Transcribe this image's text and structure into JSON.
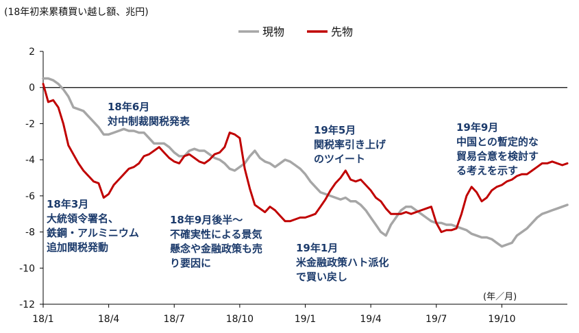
{
  "chart_data": {
    "type": "line",
    "subtitle": "(18年初来累積買い越し額、兆円)",
    "x_unit_label": "(年／月)",
    "ylim": [
      -12,
      2
    ],
    "yticks": [
      "2",
      "0",
      "-2",
      "-4",
      "-6",
      "-8",
      "-10",
      "-12"
    ],
    "ytick_values": [
      2,
      0,
      -2,
      -4,
      -6,
      -8,
      -10,
      -12
    ],
    "xticks": [
      "18/1",
      "18/4",
      "18/7",
      "18/10",
      "19/1",
      "19/4",
      "19/7",
      "19/10"
    ],
    "x_week_range": [
      0,
      104
    ],
    "grid": false,
    "legend_position": "top-center",
    "series": [
      {
        "name": "現物",
        "color": "#a6a6a6",
        "values": [
          0.5,
          0.5,
          0.4,
          0.2,
          -0.1,
          -0.5,
          -1.1,
          -1.2,
          -1.3,
          -1.6,
          -1.9,
          -2.2,
          -2.6,
          -2.6,
          -2.5,
          -2.4,
          -2.3,
          -2.4,
          -2.4,
          -2.5,
          -2.5,
          -2.8,
          -3.1,
          -3.1,
          -3.1,
          -3.3,
          -3.6,
          -3.8,
          -3.8,
          -3.5,
          -3.4,
          -3.5,
          -3.5,
          -3.7,
          -3.9,
          -4.0,
          -4.2,
          -4.5,
          -4.6,
          -4.4,
          -4.2,
          -3.8,
          -3.5,
          -3.9,
          -4.1,
          -4.2,
          -4.4,
          -4.2,
          -4.0,
          -4.1,
          -4.3,
          -4.5,
          -4.8,
          -5.2,
          -5.5,
          -5.8,
          -5.9,
          -6.0,
          -6.1,
          -6.2,
          -6.1,
          -6.3,
          -6.3,
          -6.5,
          -6.8,
          -7.2,
          -7.6,
          -8.0,
          -8.2,
          -7.6,
          -7.2,
          -6.8,
          -6.6,
          -6.6,
          -6.8,
          -7.0,
          -7.2,
          -7.4,
          -7.5,
          -7.5,
          -7.6,
          -7.6,
          -7.7,
          -7.8,
          -7.9,
          -8.1,
          -8.2,
          -8.3,
          -8.3,
          -8.4,
          -8.6,
          -8.8,
          -8.7,
          -8.6,
          -8.2,
          -8.0,
          -7.8,
          -7.5,
          -7.2,
          -7.0,
          -6.9,
          -6.8,
          -6.7,
          -6.6,
          -6.5
        ]
      },
      {
        "name": "先物",
        "color": "#c00000",
        "values": [
          0.2,
          -0.8,
          -0.7,
          -1.1,
          -2.0,
          -3.2,
          -3.7,
          -4.2,
          -4.6,
          -4.9,
          -5.2,
          -5.3,
          -6.1,
          -5.9,
          -5.4,
          -5.1,
          -4.8,
          -4.5,
          -4.4,
          -4.2,
          -3.8,
          -3.7,
          -3.5,
          -3.3,
          -3.6,
          -3.9,
          -4.1,
          -4.2,
          -3.8,
          -3.7,
          -3.9,
          -4.1,
          -4.2,
          -4.0,
          -3.7,
          -3.6,
          -3.3,
          -2.5,
          -2.6,
          -2.8,
          -4.5,
          -5.6,
          -6.5,
          -6.7,
          -6.9,
          -6.6,
          -6.8,
          -7.1,
          -7.4,
          -7.4,
          -7.3,
          -7.2,
          -7.2,
          -7.1,
          -7.0,
          -6.6,
          -6.2,
          -5.7,
          -5.3,
          -5.0,
          -4.6,
          -5.1,
          -5.2,
          -5.1,
          -5.4,
          -5.7,
          -6.1,
          -6.3,
          -6.7,
          -7.0,
          -7.0,
          -7.0,
          -6.9,
          -7.0,
          -6.9,
          -6.8,
          -6.7,
          -6.6,
          -7.5,
          -8.0,
          -7.9,
          -7.9,
          -7.8,
          -7.0,
          -6.0,
          -5.5,
          -5.8,
          -6.3,
          -6.1,
          -5.7,
          -5.5,
          -5.4,
          -5.2,
          -5.1,
          -4.9,
          -4.8,
          -4.8,
          -4.6,
          -4.4,
          -4.2,
          -4.2,
          -4.1,
          -4.2,
          -4.3,
          -4.2
        ]
      }
    ],
    "annotations": [
      {
        "lines": [
          "18年3月",
          "大統領令署名、",
          "鉄鋼・アルミニウム",
          "追加関税発動"
        ]
      },
      {
        "lines": [
          "18年6月",
          "対中制裁関税発表"
        ]
      },
      {
        "lines": [
          "18年9月後半～",
          "不確実性による景気",
          "懸念や金融政策も売",
          "り要因に"
        ]
      },
      {
        "lines": [
          "19年1月",
          "米金融政策ハト派化",
          "で買い戻し"
        ]
      },
      {
        "lines": [
          "19年5月",
          "関税率引き上げ",
          "のツイート"
        ]
      },
      {
        "lines": [
          "19年9月",
          "中国との暫定的な",
          "貿易合意を検討す",
          "る考えを示す"
        ]
      }
    ]
  }
}
